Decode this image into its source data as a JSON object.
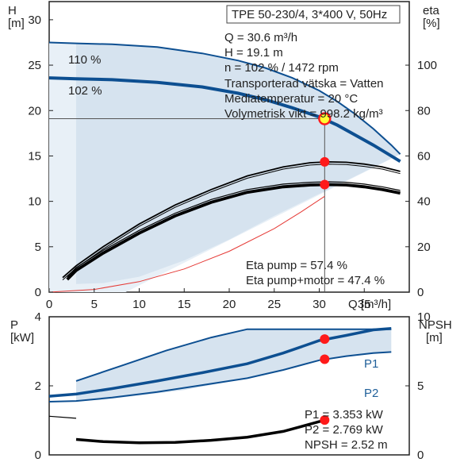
{
  "colors": {
    "frame": "#222222",
    "curve_blue": "#0d4f91",
    "curve_blue_light": "#2c6aa8",
    "region_fill": "#d6e3ef",
    "region_fill_light": "#e8f0f7",
    "marker_red": "#ff1a1a",
    "marker_yellow": "#ffff33",
    "eta_red": "#e53935",
    "black": "#000000",
    "grid_line": "#555555"
  },
  "chart_data": [
    {
      "type": "line",
      "title": "TPE 50-230/4, 3*400 V, 50Hz",
      "xlabel": "Q [m³/h]",
      "ylabel_left": "H",
      "ylabel_left_unit": "[m]",
      "ylabel_right": "eta",
      "ylabel_right_unit": "[%]",
      "xlim": [
        0,
        40
      ],
      "ylim_left": [
        0,
        32
      ],
      "ylim_right": [
        0,
        128
      ],
      "x_ticks": [
        0,
        5,
        10,
        15,
        20,
        25,
        30,
        35
      ],
      "x_tick_labels": [
        "0",
        "5",
        "10",
        "15",
        "20",
        "25",
        "30",
        "35"
      ],
      "y_ticks_left": [
        0,
        5,
        10,
        15,
        20,
        25,
        30
      ],
      "y_tick_labels_left": [
        "0",
        "5",
        "10",
        "15",
        "20",
        "25",
        "30"
      ],
      "y_ticks_right": [
        0,
        20,
        40,
        60,
        80,
        100
      ],
      "y_tick_labels_right": [
        "0",
        "20",
        "40",
        "60",
        "80",
        "100"
      ],
      "info_lines": [
        "Q = 30.6 m³/h",
        "H = 19.1 m",
        "n = 102 % / 1472 rpm",
        "Transporterad vätska = Vatten",
        "Mediatemperatur = 20 °C",
        "Volymetrisk vikt = 998.2 kg/m³"
      ],
      "eta_lines": [
        "Eta pump = 57.4 %",
        "Eta pump+motor = 47.4 %"
      ],
      "curve_labels": [
        "110 %",
        "102 %"
      ],
      "operating_point": {
        "q": 30.6,
        "h": 19.1
      },
      "eta_points": [
        {
          "q": 30.6,
          "eta": 57.4
        },
        {
          "q": 30.6,
          "eta": 47.4
        }
      ],
      "series": [
        {
          "name": "110 %",
          "x": [
            0.0,
            3.0,
            7.0,
            12.0,
            17.0,
            21.0,
            24.0,
            27.0,
            30.0,
            32.0,
            34.0,
            36.0,
            38.0,
            39.0
          ],
          "y": [
            27.5,
            27.4,
            27.3,
            27.0,
            26.3,
            25.5,
            24.7,
            23.6,
            22.2,
            21.0,
            19.6,
            18.0,
            16.2,
            15.2
          ]
        },
        {
          "name": "102 %",
          "x": [
            0.0,
            3.0,
            7.0,
            12.0,
            17.0,
            21.0,
            24.0,
            27.0,
            30.0,
            32.0,
            34.0,
            36.0,
            38.0,
            39.0
          ],
          "y": [
            23.6,
            23.5,
            23.4,
            23.1,
            22.6,
            21.9,
            21.2,
            20.3,
            19.3,
            18.4,
            17.3,
            16.2,
            15.0,
            14.4
          ]
        },
        {
          "x": [
            1.5,
            3.0,
            6.0,
            10.0,
            14.0,
            18.0,
            22.0,
            26.0,
            29.0,
            31.0,
            33.0,
            35.0,
            37.0,
            39.0
          ],
          "y": [
            6.4,
            11.6,
            20.0,
            30.0,
            38.4,
            45.2,
            51.2,
            55.2,
            57.0,
            57.4,
            57.2,
            56.4,
            55.2,
            53.2
          ]
        },
        {
          "x": [
            2.0,
            3.0,
            6.0,
            10.0,
            14.0,
            18.0,
            22.0,
            26.0,
            29.0,
            31.0,
            33.0,
            35.0,
            37.0,
            39.0
          ],
          "y": [
            5.6,
            9.6,
            17.2,
            26.0,
            33.6,
            39.6,
            44.0,
            46.4,
            47.2,
            47.4,
            47.2,
            46.4,
            45.2,
            43.6
          ]
        },
        {
          "x": [
            0.0,
            5.0,
            10.0,
            15.0,
            20.0,
            25.0,
            28.0,
            30.6
          ],
          "y": [
            0.0,
            1.2,
            4.6,
            10.2,
            18.0,
            28.0,
            35.4,
            42.2
          ]
        }
      ]
    },
    {
      "type": "line",
      "xlabel": "",
      "ylabel_left": "P",
      "ylabel_left_unit": "[kW]",
      "ylabel_right": "NPSH",
      "ylabel_right_unit": "[m]",
      "xlim": [
        0,
        40
      ],
      "ylim_left": [
        0,
        4
      ],
      "ylim_right": [
        0,
        10
      ],
      "y_ticks_left": [
        0,
        2,
        4
      ],
      "y_tick_labels_left": [
        "0",
        "2",
        "4"
      ],
      "y_ticks_right": [
        0,
        5,
        10
      ],
      "y_tick_labels_right": [
        "0",
        "5",
        "10"
      ],
      "info_lines": [
        "P1 = 3.353 kW",
        "P2 = 2.769 kW",
        "NPSH = 2.52 m"
      ],
      "series_labels": [
        "P1",
        "P2"
      ],
      "marker_points": [
        {
          "q": 30.6,
          "p": 3.353
        },
        {
          "q": 30.6,
          "p": 2.769
        },
        {
          "q": 30.6,
          "npsh": 2.52
        }
      ],
      "series": [
        {
          "name": "P1",
          "x": [
            0.0,
            3.0,
            7.0,
            12.0,
            17.0,
            22.0,
            26.0,
            30.0,
            33.0,
            36.0,
            38.0
          ],
          "y": [
            1.7,
            1.76,
            1.92,
            2.14,
            2.38,
            2.64,
            2.95,
            3.31,
            3.46,
            3.62,
            3.66
          ]
        },
        {
          "name": "P2",
          "x": [
            0.0,
            3.0,
            7.0,
            12.0,
            17.0,
            22.0,
            26.0,
            30.0,
            33.0,
            36.0,
            38.0
          ],
          "y": [
            1.54,
            1.56,
            1.66,
            1.82,
            2.02,
            2.22,
            2.46,
            2.74,
            2.86,
            2.95,
            2.98
          ]
        },
        {
          "x": [
            3.0,
            6.0,
            10.0,
            14.0,
            18.0,
            22.0,
            26.0,
            30.6
          ],
          "y": [
            1.12,
            0.96,
            0.88,
            0.9,
            1.06,
            1.28,
            1.7,
            2.52
          ]
        }
      ]
    }
  ]
}
